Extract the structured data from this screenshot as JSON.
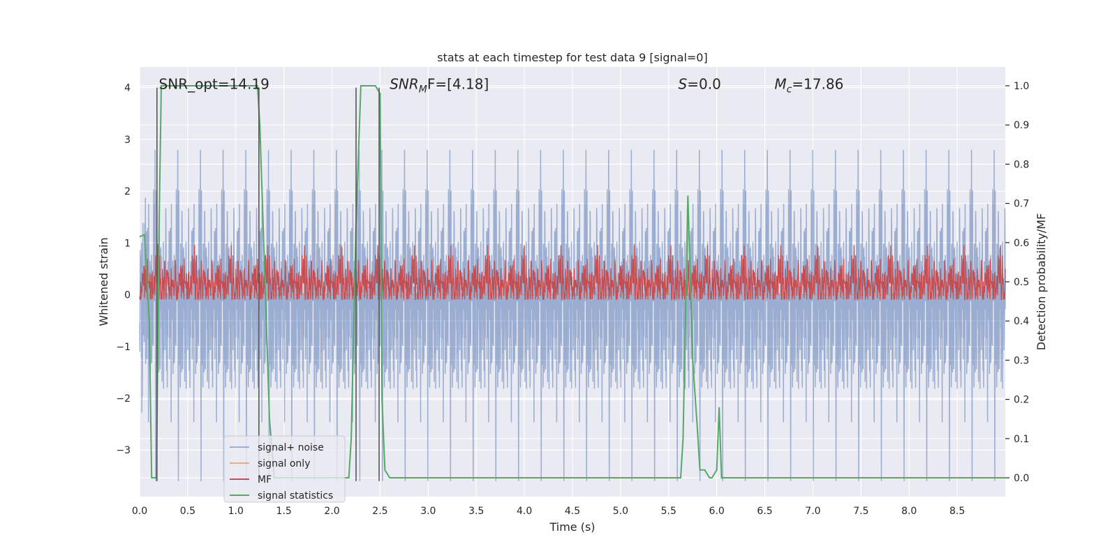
{
  "chart_data": {
    "type": "line",
    "title": "stats at each timestep for test data 9 [signal=0]",
    "xlabel": "Time (s)",
    "ylabel": "Whitened strain",
    "y2label": "Detection probability/MF",
    "xlim": [
      0.0,
      9.0
    ],
    "ylim": [
      -3.9,
      4.4
    ],
    "y2lim": [
      -0.048,
      1.048
    ],
    "xticks": [
      0.0,
      0.5,
      1.0,
      1.5,
      2.0,
      2.5,
      3.0,
      3.5,
      4.0,
      4.5,
      5.0,
      5.5,
      6.0,
      6.5,
      7.0,
      7.5,
      8.0,
      8.5
    ],
    "xtick_labels": [
      "0.0",
      "0.5",
      "1.0",
      "1.5",
      "2.0",
      "2.5",
      "3.0",
      "3.5",
      "4.0",
      "4.5",
      "5.0",
      "5.5",
      "6.0",
      "6.5",
      "7.0",
      "7.5",
      "8.0",
      "8.5"
    ],
    "yticks": [
      -3,
      -2,
      -1,
      0,
      1,
      2,
      3,
      4
    ],
    "ytick_labels": [
      "−3",
      "−2",
      "−1",
      "0",
      "1",
      "2",
      "3",
      "4"
    ],
    "y2ticks": [
      0.0,
      0.1,
      0.2,
      0.3,
      0.4,
      0.5,
      0.6,
      0.7,
      0.8,
      0.9,
      1.0
    ],
    "y2tick_labels": [
      "0.0",
      "0.1",
      "0.2",
      "0.3",
      "0.4",
      "0.5",
      "0.6",
      "0.7",
      "0.8",
      "0.9",
      "1.0"
    ],
    "grid": true,
    "legend_position": "lower-left",
    "annotations": [
      {
        "text": "SNR_opt=14.19",
        "x": 0.2,
        "y": 4.0
      },
      {
        "text": "SNR",
        "sub": "M",
        "tail": "F=[4.18]",
        "x": 2.6,
        "y": 4.0
      },
      {
        "text": "S",
        "tail": "=0.0",
        "x": 5.6,
        "y": 4.0
      },
      {
        "text": "M",
        "sub": "c",
        "tail": "=17.86",
        "x": 6.6,
        "y": 4.0
      }
    ],
    "vlines": [
      {
        "x": 0.18,
        "y0": -3.6,
        "y1": 4.0
      },
      {
        "x": 1.24,
        "y0": -3.6,
        "y1": 4.0
      },
      {
        "x": 2.25,
        "y0": -3.6,
        "y1": 4.0
      },
      {
        "x": 2.49,
        "y0": -3.6,
        "y1": 4.0
      }
    ],
    "series": [
      {
        "name": "signal+ noise",
        "color": "#4c72b0",
        "opacity": 0.5,
        "axis": "left",
        "style": "noise",
        "spread": 1.05
      },
      {
        "name": "signal only",
        "color": "#dd8452",
        "opacity": 0.6,
        "axis": "left",
        "x": [
          0.0,
          9.0
        ],
        "values": [
          0.0,
          0.0
        ]
      },
      {
        "name": "MF",
        "color": "#c44e52",
        "axis": "right",
        "style": "mf",
        "base": 0.5,
        "spread": 0.035
      },
      {
        "name": "signal statistics",
        "color": "#55a868",
        "axis": "right",
        "x": [
          0.0,
          0.05,
          0.1,
          0.125,
          0.175,
          0.2,
          0.225,
          0.25,
          1.225,
          1.25,
          1.35,
          1.4,
          1.5,
          2.175,
          2.2,
          2.25,
          2.3,
          2.35,
          2.45,
          2.5,
          2.52,
          2.55,
          2.575,
          2.6,
          2.65,
          5.6,
          5.625,
          5.65,
          5.7,
          5.75,
          5.8,
          5.825,
          5.875,
          5.925,
          5.95,
          6.0,
          6.025,
          6.05,
          6.075,
          9.0
        ],
        "values": [
          0.615,
          0.62,
          0.4,
          0.0,
          0.0,
          0.6,
          1.0,
          1.0,
          1.0,
          0.9,
          0.15,
          0.0,
          0.0,
          0.0,
          0.1,
          0.65,
          1.0,
          1.0,
          1.0,
          0.98,
          0.2,
          0.02,
          0.01,
          0.0,
          0.0,
          0.0,
          0.0,
          0.1,
          0.72,
          0.3,
          0.12,
          0.02,
          0.02,
          0.0,
          0.0,
          0.02,
          0.18,
          0.0,
          0.0,
          0.0
        ]
      }
    ]
  }
}
